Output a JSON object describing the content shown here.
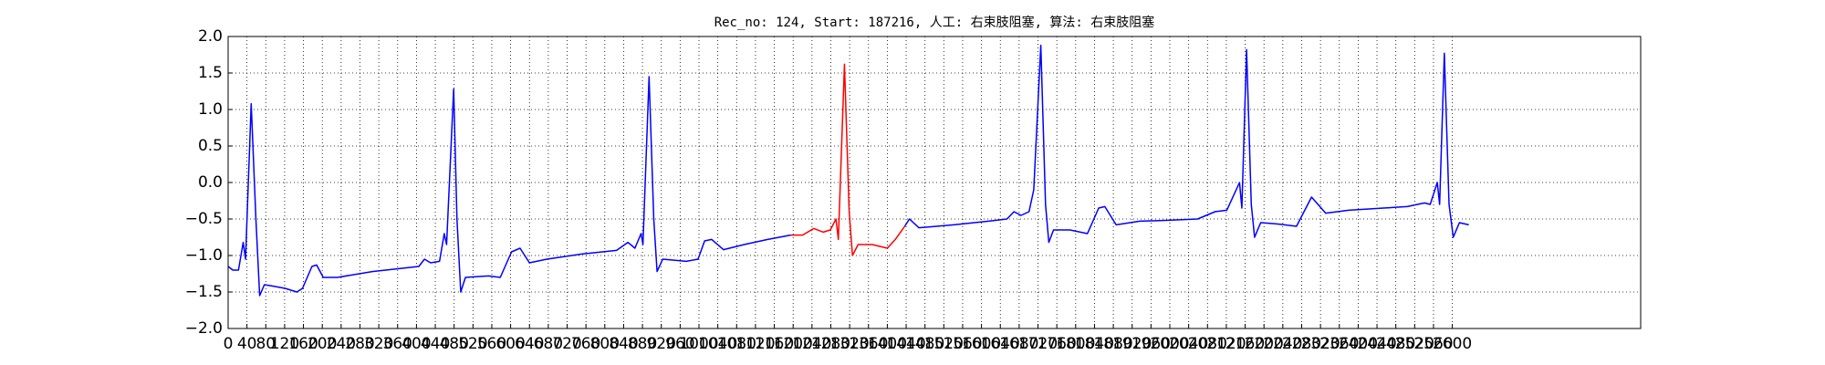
{
  "chart_data": {
    "type": "line",
    "title": "Rec_no: 124, Start: 187216, 人工: 右束肢阻塞, 算法: 右束肢阻塞",
    "xlim": [
      0,
      3000
    ],
    "ylim": [
      -2.0,
      2.0
    ],
    "xticks": [
      0,
      40,
      80,
      120,
      160,
      200,
      240,
      280,
      320,
      360,
      400,
      440,
      480,
      520,
      560,
      600,
      640,
      680,
      720,
      760,
      800,
      840,
      880,
      920,
      960,
      1000,
      1040,
      1080,
      1120,
      1160,
      1200,
      1240,
      1280,
      1320,
      1360,
      1400,
      1440,
      1480,
      1520,
      1560,
      1600,
      1640,
      1680,
      1720,
      1760,
      1800,
      1840,
      1880,
      1920,
      1960,
      2000,
      2040,
      2080,
      2120,
      2160,
      2200,
      2240,
      2280,
      2320,
      2360,
      2400,
      2440,
      2480,
      2520,
      2560,
      2600
    ],
    "yticks": [
      {
        "value": -2.0,
        "label": "−2.0"
      },
      {
        "value": -1.5,
        "label": "−1.5"
      },
      {
        "value": -1.0,
        "label": "−1.0"
      },
      {
        "value": -0.5,
        "label": "−0.5"
      },
      {
        "value": 0.0,
        "label": "0.0"
      },
      {
        "value": 0.5,
        "label": "0.5"
      },
      {
        "value": 1.0,
        "label": "1.0"
      },
      {
        "value": 1.5,
        "label": "1.5"
      },
      {
        "value": 2.0,
        "label": "2.0"
      }
    ],
    "grid": true,
    "series": [
      {
        "color": "#0000ff",
        "x": [
          0,
          10,
          22,
          32,
          37,
          49,
          59,
          67,
          77,
          96,
          121,
          146,
          158,
          178,
          188,
          202,
          232,
          306,
          405,
          417,
          430,
          449,
          459,
          464,
          479,
          486,
          494,
          504,
          553,
          578,
          602,
          620,
          640,
          677,
          751,
          825,
          849,
          864,
          877,
          881,
          894,
          904,
          911,
          923,
          973,
          998,
          1012,
          1027,
          1052,
          1096,
          1146,
          1195
        ],
        "values": [
          -1.15,
          -1.2,
          -1.2,
          -0.82,
          -1.05,
          1.08,
          -0.5,
          -1.55,
          -1.4,
          -1.42,
          -1.45,
          -1.5,
          -1.45,
          -1.15,
          -1.13,
          -1.3,
          -1.3,
          -1.22,
          -1.15,
          -1.05,
          -1.1,
          -1.08,
          -0.7,
          -0.85,
          1.28,
          -0.5,
          -1.5,
          -1.3,
          -1.28,
          -1.3,
          -0.95,
          -0.9,
          -1.1,
          -1.05,
          -0.98,
          -0.93,
          -0.82,
          -0.9,
          -0.7,
          -0.85,
          1.45,
          -0.5,
          -1.22,
          -1.05,
          -1.08,
          -1.05,
          -0.8,
          -0.78,
          -0.92,
          -0.85,
          -0.78,
          -0.72
        ]
      },
      {
        "color": "#ff0000",
        "x": [
          1195,
          1220,
          1244,
          1264,
          1279,
          1291,
          1296,
          1309,
          1319,
          1326,
          1338,
          1368,
          1400,
          1417,
          1437
        ],
        "values": [
          -0.72,
          -0.72,
          -0.63,
          -0.68,
          -0.65,
          -0.5,
          -0.78,
          1.62,
          -0.4,
          -1.0,
          -0.85,
          -0.85,
          -0.9,
          -0.78,
          -0.6
        ]
      },
      {
        "color": "#0000ff",
        "x": [
          1437,
          1447,
          1467,
          1541,
          1615,
          1654,
          1669,
          1684,
          1701,
          1711,
          1726,
          1736,
          1743,
          1753,
          1788,
          1825,
          1849,
          1862,
          1886,
          1936,
          1985,
          2059,
          2096,
          2121,
          2148,
          2153,
          2163,
          2173,
          2180,
          2193,
          2232,
          2269,
          2301,
          2331,
          2380,
          2454,
          2504,
          2541,
          2553,
          2568,
          2573,
          2583,
          2593,
          2602,
          2615,
          2635
        ],
        "values": [
          -0.6,
          -0.5,
          -0.62,
          -0.58,
          -0.53,
          -0.5,
          -0.4,
          -0.45,
          -0.4,
          -0.1,
          1.88,
          -0.3,
          -0.82,
          -0.65,
          -0.65,
          -0.7,
          -0.35,
          -0.33,
          -0.58,
          -0.53,
          -0.52,
          -0.5,
          -0.4,
          -0.38,
          0.0,
          -0.35,
          1.82,
          -0.3,
          -0.75,
          -0.55,
          -0.57,
          -0.6,
          -0.2,
          -0.42,
          -0.38,
          -0.35,
          -0.33,
          -0.28,
          -0.3,
          0.0,
          -0.3,
          1.77,
          -0.3,
          -0.75,
          -0.55,
          -0.58
        ]
      }
    ]
  }
}
